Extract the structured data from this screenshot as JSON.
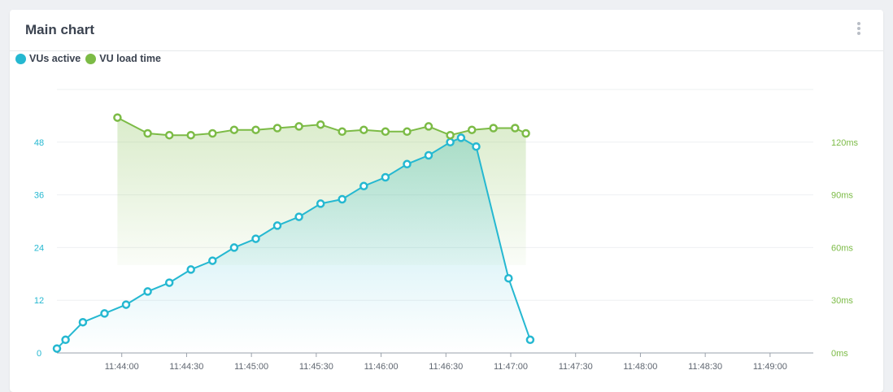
{
  "card": {
    "title": "Main chart",
    "menu_icon": "vertical-dots-icon"
  },
  "legend": [
    {
      "label": "VUs active",
      "color": "#25b8d1"
    },
    {
      "label": "VU load time",
      "color": "#7cbb46"
    }
  ],
  "chart_data": {
    "type": "line",
    "title": "Main chart",
    "x_tick_labels": [
      "11:44:00",
      "11:44:30",
      "11:45:00",
      "11:45:30",
      "11:46:00",
      "11:46:30",
      "11:47:00",
      "11:47:30",
      "11:48:00",
      "11:48:30",
      "11:49:00"
    ],
    "y_left": {
      "ticks": [
        0,
        12,
        24,
        36,
        48
      ],
      "range": [
        0,
        60
      ]
    },
    "y_right": {
      "ticks": [
        "0ms",
        "30ms",
        "60ms",
        "90ms",
        "120ms"
      ],
      "range_ms": [
        0,
        150
      ]
    },
    "xlim": [
      "11:43:30",
      "11:49:20"
    ],
    "grid": true,
    "legend_position": "top-left",
    "series": [
      {
        "name": "VUs active",
        "axis": "left",
        "color": "#25b8d1",
        "area": true,
        "points": [
          [
            "11:43:30",
            1
          ],
          [
            "11:43:34",
            3
          ],
          [
            "11:43:42",
            7
          ],
          [
            "11:43:52",
            9
          ],
          [
            "11:44:02",
            11
          ],
          [
            "11:44:12",
            14
          ],
          [
            "11:44:22",
            16
          ],
          [
            "11:44:32",
            19
          ],
          [
            "11:44:42",
            21
          ],
          [
            "11:44:52",
            24
          ],
          [
            "11:45:02",
            26
          ],
          [
            "11:45:12",
            29
          ],
          [
            "11:45:22",
            31
          ],
          [
            "11:45:32",
            34
          ],
          [
            "11:45:42",
            35
          ],
          [
            "11:45:52",
            38
          ],
          [
            "11:46:02",
            40
          ],
          [
            "11:46:12",
            43
          ],
          [
            "11:46:22",
            45
          ],
          [
            "11:46:32",
            48
          ],
          [
            "11:46:37",
            49
          ],
          [
            "11:46:44",
            47
          ],
          [
            "11:46:59",
            17
          ],
          [
            "11:47:09",
            3
          ]
        ]
      },
      {
        "name": "VU load time",
        "axis": "right",
        "color": "#7cbb46",
        "area": true,
        "points": [
          [
            "11:43:58",
            134
          ],
          [
            "11:44:12",
            125
          ],
          [
            "11:44:22",
            124
          ],
          [
            "11:44:32",
            124
          ],
          [
            "11:44:42",
            125
          ],
          [
            "11:44:52",
            127
          ],
          [
            "11:45:02",
            127
          ],
          [
            "11:45:12",
            128
          ],
          [
            "11:45:22",
            129
          ],
          [
            "11:45:32",
            130
          ],
          [
            "11:45:42",
            126
          ],
          [
            "11:45:52",
            127
          ],
          [
            "11:46:02",
            126
          ],
          [
            "11:46:12",
            126
          ],
          [
            "11:46:22",
            129
          ],
          [
            "11:46:32",
            124
          ],
          [
            "11:46:42",
            127
          ],
          [
            "11:46:52",
            128
          ],
          [
            "11:47:02",
            128
          ],
          [
            "11:47:07",
            125
          ]
        ]
      }
    ]
  }
}
